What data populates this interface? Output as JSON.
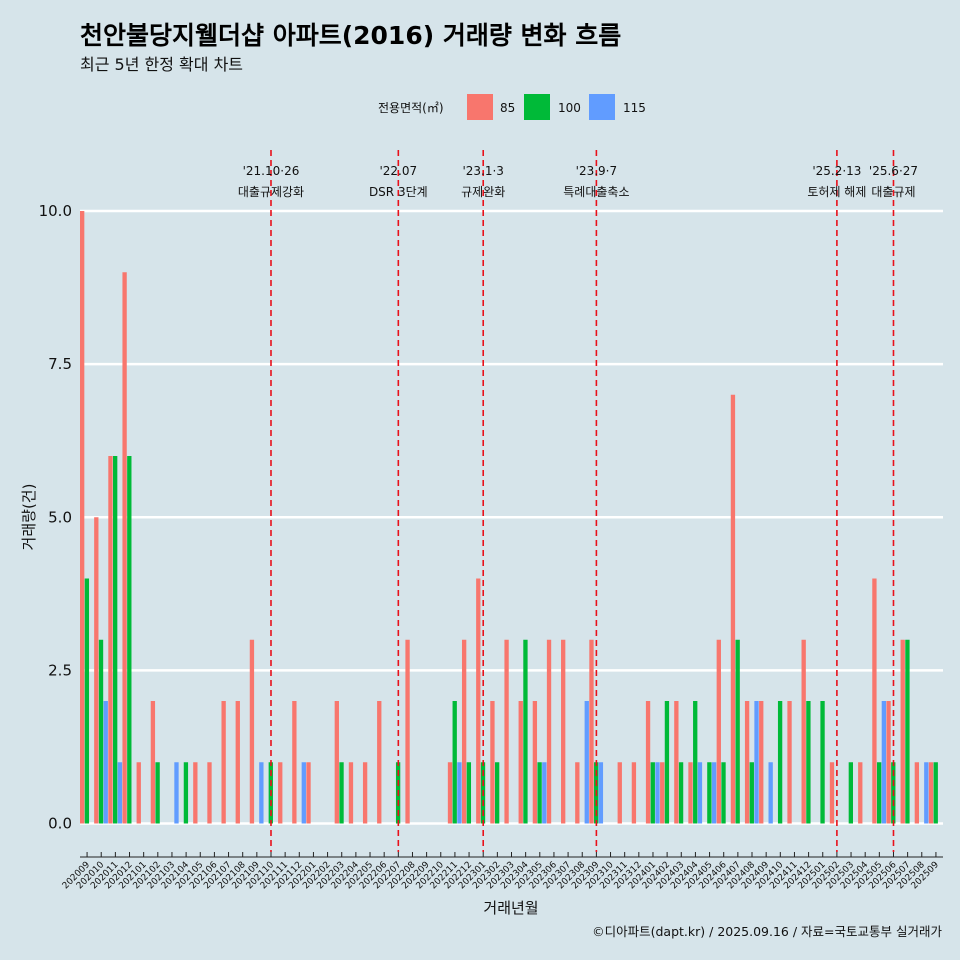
{
  "chart_data": {
    "type": "bar",
    "title": "천안불당지웰더샵 아파트(2016) 거래량 변화 흐름",
    "subtitle": "최근 5년 한정 확대 차트",
    "xlabel": "거래년월",
    "ylabel": "거래량(건)",
    "ylim": [
      -0.4,
      10.6
    ],
    "yticks": [
      "0.0",
      "2.5",
      "5.0",
      "7.5",
      "10.0"
    ],
    "ytick_values": [
      0,
      2.5,
      5,
      7.5,
      10
    ],
    "grid": true,
    "legend": {
      "title": "전용면적(㎡)",
      "position": "top",
      "entries": [
        "85",
        "100",
        "115"
      ]
    },
    "colors": {
      "85": "#f8766d",
      "100": "#00ba38",
      "115": "#619cff"
    },
    "categories": [
      "202009",
      "202010",
      "202011",
      "202012",
      "202101",
      "202102",
      "202103",
      "202104",
      "202105",
      "202106",
      "202107",
      "202108",
      "202109",
      "202110",
      "202111",
      "202112",
      "202201",
      "202202",
      "202203",
      "202204",
      "202205",
      "202206",
      "202207",
      "202208",
      "202209",
      "202210",
      "202211",
      "202212",
      "202301",
      "202302",
      "202303",
      "202304",
      "202305",
      "202306",
      "202307",
      "202308",
      "202309",
      "202310",
      "202311",
      "202312",
      "202401",
      "202402",
      "202403",
      "202404",
      "202405",
      "202406",
      "202407",
      "202408",
      "202409",
      "202410",
      "202411",
      "202412",
      "202501",
      "202502",
      "202503",
      "202504",
      "202505",
      "202506",
      "202507",
      "202508",
      "202509"
    ],
    "series": [
      {
        "name": "85",
        "values": [
          10,
          5,
          6,
          9,
          1,
          2,
          0,
          0,
          1,
          1,
          2,
          2,
          3,
          0,
          1,
          2,
          1,
          0,
          2,
          1,
          1,
          2,
          0,
          3,
          0,
          0,
          1,
          3,
          4,
          2,
          3,
          2,
          2,
          3,
          3,
          1,
          3,
          0,
          1,
          1,
          2,
          1,
          2,
          1,
          0,
          3,
          7,
          2,
          2,
          0,
          2,
          3,
          0,
          1,
          0,
          1,
          4,
          2,
          3,
          1,
          1
        ]
      },
      {
        "name": "100",
        "values": [
          4,
          3,
          6,
          6,
          0,
          1,
          0,
          1,
          0,
          0,
          0,
          0,
          0,
          1,
          0,
          0,
          0,
          0,
          1,
          0,
          0,
          0,
          1,
          0,
          0,
          0,
          2,
          1,
          1,
          1,
          0,
          3,
          1,
          0,
          0,
          0,
          1,
          0,
          0,
          0,
          1,
          2,
          1,
          2,
          1,
          1,
          3,
          1,
          0,
          2,
          0,
          2,
          2,
          0,
          1,
          0,
          1,
          1,
          3,
          0,
          1
        ]
      },
      {
        "name": "115",
        "values": [
          0,
          2,
          1,
          0,
          0,
          0,
          1,
          0,
          0,
          0,
          0,
          0,
          1,
          0,
          0,
          1,
          0,
          0,
          0,
          0,
          0,
          0,
          0,
          0,
          0,
          0,
          1,
          0,
          0,
          0,
          0,
          0,
          1,
          0,
          0,
          2,
          1,
          0,
          0,
          0,
          1,
          0,
          0,
          1,
          1,
          0,
          0,
          2,
          1,
          0,
          0,
          0,
          0,
          0,
          0,
          0,
          2,
          0,
          0,
          1,
          0
        ]
      }
    ],
    "events": [
      {
        "date": "'21.10·26",
        "label": "대출규제강화",
        "at": "202110"
      },
      {
        "date": "'22.07",
        "label": "DSR 3단계",
        "at": "202207"
      },
      {
        "date": "'23.1·3",
        "label": "규제완화",
        "at": "202301"
      },
      {
        "date": "'23.9·7",
        "label": "특례대출축소",
        "at": "202309"
      },
      {
        "date": "'25.2·13",
        "label": "토허제 해제",
        "at": "202502"
      },
      {
        "date": "'25.6·27",
        "label": "대출규제",
        "at": "202506"
      }
    ],
    "caption": "©디아파트(dapt.kr) / 2025.09.16 / 자료=국토교통부 실거래가"
  }
}
